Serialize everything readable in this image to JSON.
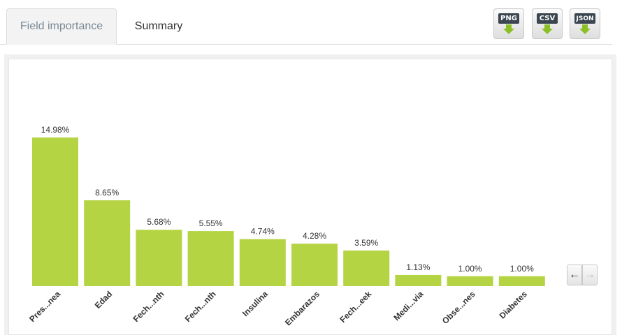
{
  "tabs": [
    {
      "label": "Field importance",
      "active": true
    },
    {
      "label": "Summary",
      "active": false
    }
  ],
  "downloads": [
    {
      "label": "PNG",
      "icon": "download-arrow-icon"
    },
    {
      "label": "CSV",
      "icon": "download-arrow-icon"
    },
    {
      "label": "JSON",
      "icon": "download-arrow-icon"
    }
  ],
  "nav": {
    "prev_label": "←",
    "next_label": "→"
  },
  "colors": {
    "bar": "#b5d444",
    "arrow": "#8cbf26"
  },
  "chart_data": {
    "type": "bar",
    "categories": [
      "Pres...nea",
      "Edad",
      "Fech...nth",
      "Fech...nth",
      "Insulina",
      "Embarazos",
      "Fech...eek",
      "Medi...via",
      "Obse...nes",
      "Diabetes"
    ],
    "values": [
      14.98,
      8.65,
      5.68,
      5.55,
      4.74,
      4.28,
      3.59,
      1.13,
      1.0,
      1.0
    ],
    "value_labels": [
      "14.98%",
      "8.65%",
      "5.68%",
      "5.55%",
      "4.74%",
      "4.28%",
      "3.59%",
      "1.13%",
      "1.00%",
      "1.00%"
    ],
    "unit": "%",
    "grid": false
  }
}
